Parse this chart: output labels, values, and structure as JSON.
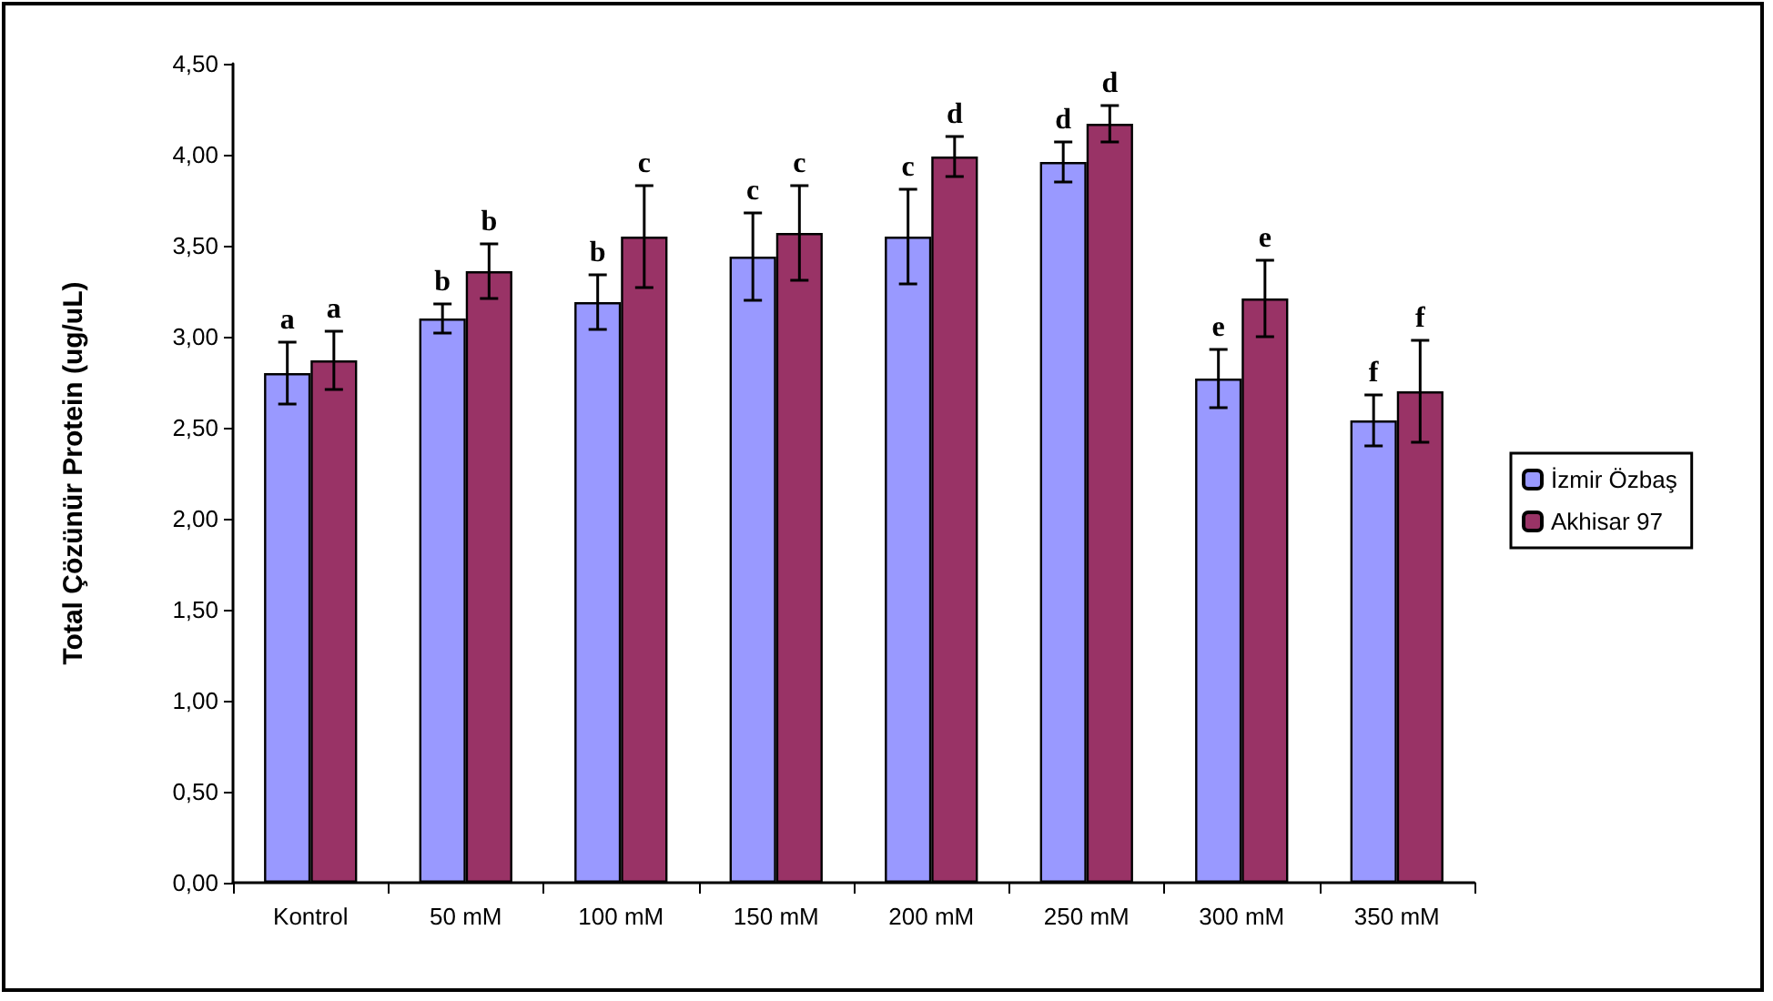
{
  "chart_data": {
    "type": "bar",
    "ylabel": "Total Çözünür Protein (ug/uL)",
    "categories": [
      "Kontrol",
      "50 mM",
      "100 mM",
      "150 mM",
      "200 mM",
      "250 mM",
      "300 mM",
      "350 mM"
    ],
    "series": [
      {
        "name": "İzmir Özbaş",
        "color": "#9999ff",
        "values": [
          2.8,
          3.1,
          3.19,
          3.44,
          3.55,
          3.96,
          2.77,
          2.54
        ],
        "errors": [
          0.17,
          0.08,
          0.15,
          0.24,
          0.26,
          0.11,
          0.16,
          0.14
        ]
      },
      {
        "name": "Akhisar 97",
        "color": "#993366",
        "values": [
          2.87,
          3.36,
          3.55,
          3.57,
          3.99,
          4.17,
          3.21,
          2.7
        ],
        "errors": [
          0.16,
          0.15,
          0.28,
          0.26,
          0.11,
          0.1,
          0.21,
          0.28
        ]
      }
    ],
    "ylim": [
      0,
      4.5
    ],
    "yticks": [
      {
        "value": 0,
        "label": "0,00"
      },
      {
        "value": 0.5,
        "label": "0,50"
      },
      {
        "value": 1,
        "label": "1,00"
      },
      {
        "value": 1.5,
        "label": "1,50"
      },
      {
        "value": 2,
        "label": "2,00"
      },
      {
        "value": 2.5,
        "label": "2,50"
      },
      {
        "value": 3,
        "label": "3,00"
      },
      {
        "value": 3.5,
        "label": "3,50"
      },
      {
        "value": 4,
        "label": "4,00"
      },
      {
        "value": 4.5,
        "label": "4,50"
      }
    ],
    "annotations": [
      {
        "text": "a",
        "x": "Kontrol",
        "y": 2.8
      },
      {
        "text": "a",
        "x": "Kontrol",
        "y": 2.87
      },
      {
        "text": "b",
        "x": "50 mM",
        "y": 3.1
      },
      {
        "text": "b",
        "x": "50 mM",
        "y": 3.36
      },
      {
        "text": "b",
        "x": "100 mM",
        "y": 3.19
      },
      {
        "text": "c",
        "x": "100 mM",
        "y": 3.55
      },
      {
        "text": "c",
        "x": "150 mM",
        "y": 3.44
      },
      {
        "text": "c",
        "x": "150 mM",
        "y": 3.57
      },
      {
        "text": "c",
        "x": "200 mM",
        "y": 3.55
      },
      {
        "text": "d",
        "x": "200 mM",
        "y": 3.99
      },
      {
        "text": "d",
        "x": "250 mM",
        "y": 3.96
      },
      {
        "text": "d",
        "x": "250 mM",
        "y": 4.17
      },
      {
        "text": "e",
        "x": "300 mM",
        "y": 2.77
      },
      {
        "text": "e",
        "x": "300 mM",
        "y": 3.21
      },
      {
        "text": "f",
        "x": "350 mM",
        "y": 2.54
      },
      {
        "text": "f",
        "x": "350 mM",
        "y": 2.7
      }
    ],
    "grid": false,
    "legend": "right"
  }
}
